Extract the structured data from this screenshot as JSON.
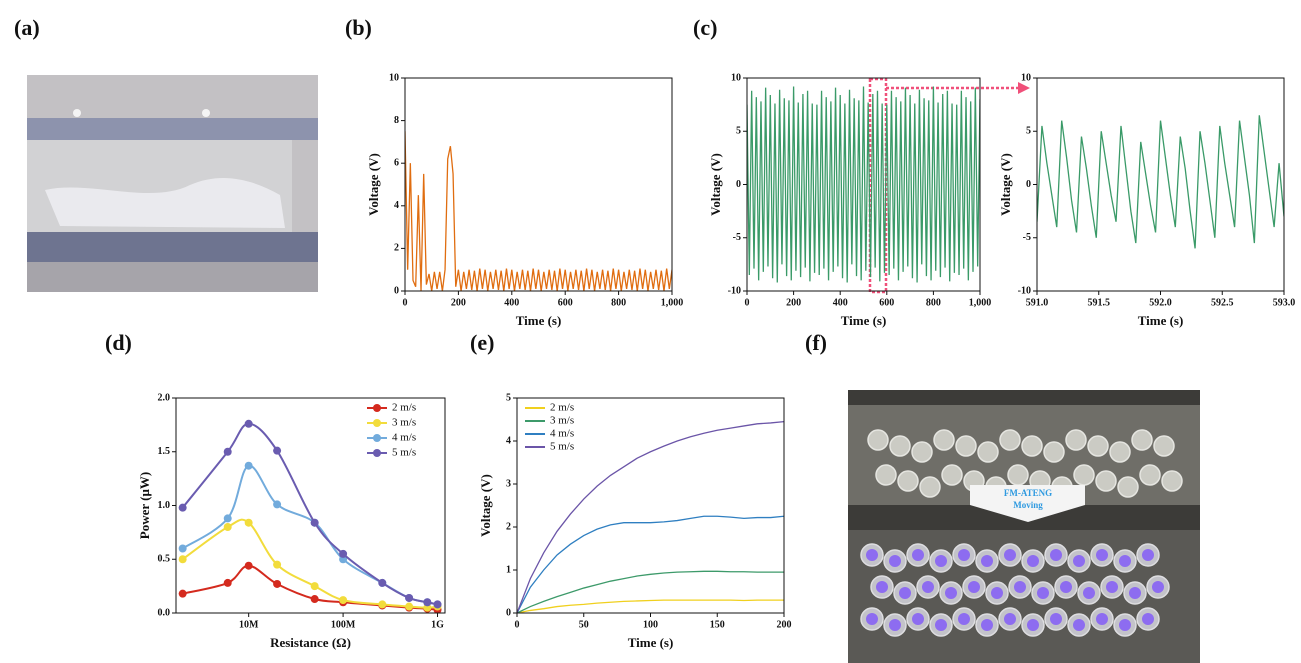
{
  "figures": {
    "a": {
      "label": "(a)"
    },
    "f": {
      "label": "(f)",
      "annotation": [
        "FM-ATENG",
        "Moving"
      ]
    }
  },
  "chart_data": [
    {
      "type": "line",
      "label": "(b)",
      "xlabel": "Time (s)",
      "ylabel": "Voltage (V)",
      "color": "#e06d10",
      "xlim": [
        0,
        1000
      ],
      "ylim": [
        0,
        10
      ],
      "xticks": [
        0,
        200,
        400,
        600,
        800,
        {
          "value": 1000,
          "label": "1,000"
        }
      ],
      "yticks": [
        0,
        2,
        4,
        6,
        8,
        10
      ],
      "x": [
        0,
        10,
        20,
        30,
        40,
        50,
        60,
        70,
        80,
        90,
        100,
        110,
        120,
        130,
        140,
        150,
        160,
        170,
        180,
        190,
        200,
        210,
        220,
        230,
        240,
        250,
        260,
        270,
        280,
        290,
        300,
        310,
        320,
        330,
        340,
        350,
        360,
        370,
        380,
        390,
        400,
        410,
        420,
        430,
        440,
        450,
        460,
        470,
        480,
        490,
        500,
        510,
        520,
        530,
        540,
        550,
        560,
        570,
        580,
        590,
        600,
        610,
        620,
        630,
        640,
        650,
        660,
        670,
        680,
        690,
        700,
        710,
        720,
        730,
        740,
        750,
        760,
        770,
        780,
        790,
        800,
        810,
        820,
        830,
        840,
        850,
        860,
        870,
        880,
        890,
        900,
        910,
        920,
        930,
        940,
        950,
        960,
        970,
        980,
        990,
        1000
      ],
      "values": [
        7.5,
        1,
        6,
        0.5,
        0.2,
        4.5,
        0,
        5.5,
        0.3,
        0.8,
        0,
        0.9,
        0.1,
        0.9,
        0,
        1,
        6.2,
        6.8,
        5.5,
        0.2,
        1,
        0,
        0.9,
        0.1,
        1,
        0.05,
        0.95,
        0,
        1.05,
        0.1,
        1,
        0,
        0.9,
        0.1,
        1,
        0.05,
        0.95,
        0,
        1.05,
        0.1,
        1,
        0,
        0.9,
        0.1,
        1,
        0.05,
        0.95,
        0,
        1.05,
        0.1,
        1,
        0,
        0.9,
        0.1,
        1,
        0.05,
        0.95,
        0,
        1.05,
        0.1,
        1,
        0,
        0.9,
        0.1,
        1,
        0.05,
        0.95,
        0,
        1.05,
        0.1,
        1,
        0,
        0.9,
        0.1,
        1,
        0.05,
        0.95,
        0,
        1.05,
        0.1,
        1,
        0,
        0.9,
        0.1,
        1,
        0.05,
        0.95,
        0,
        1.05,
        0.1,
        1,
        0,
        0.9,
        0.1,
        1,
        0.05,
        0.95,
        0,
        1.05,
        0.1,
        1
      ]
    },
    {
      "type": "line",
      "label": "(c)",
      "xlabel": "Time (s)",
      "ylabel": "Voltage (V)",
      "color": "#3a9a68",
      "xlim": [
        0,
        1000
      ],
      "ylim": [
        -10,
        10
      ],
      "xticks": [
        0,
        200,
        400,
        600,
        800,
        {
          "value": 1000,
          "label": "1,000"
        }
      ],
      "yticks": [
        -10,
        -5,
        0,
        5,
        10
      ],
      "x": [
        0,
        10,
        20,
        30,
        40,
        50,
        60,
        70,
        80,
        90,
        100,
        110,
        120,
        130,
        140,
        150,
        160,
        170,
        180,
        190,
        200,
        210,
        220,
        230,
        240,
        250,
        260,
        270,
        280,
        290,
        300,
        310,
        320,
        330,
        340,
        350,
        360,
        370,
        380,
        390,
        400,
        410,
        420,
        430,
        440,
        450,
        460,
        470,
        480,
        490,
        500,
        510,
        520,
        530,
        540,
        550,
        560,
        570,
        580,
        590,
        600,
        610,
        620,
        630,
        640,
        650,
        660,
        670,
        680,
        690,
        700,
        710,
        720,
        730,
        740,
        750,
        760,
        770,
        780,
        790,
        800,
        810,
        820,
        830,
        840,
        850,
        860,
        870,
        880,
        890,
        900,
        910,
        920,
        930,
        940,
        950,
        960,
        970,
        980,
        990,
        1000
      ],
      "values": [
        7.5,
        -8.5,
        8.8,
        -7.9,
        8.2,
        -9,
        7.8,
        -8.2,
        9.1,
        -7.7,
        8.4,
        -8.8,
        7.6,
        -9.2,
        8.9,
        -7.5,
        8.1,
        -8.6,
        7.9,
        -9,
        9.2,
        -8.1,
        7.7,
        -8.7,
        8.5,
        -7.8,
        8.8,
        -9.1,
        7.6,
        -8.3,
        7.5,
        -8.5,
        8.8,
        -7.9,
        8.2,
        -9,
        7.8,
        -8.2,
        9.1,
        -7.7,
        8.4,
        -8.8,
        7.6,
        -9.2,
        8.9,
        -7.5,
        8.1,
        -8.6,
        7.9,
        -9,
        9.2,
        -8.1,
        7.7,
        -8.7,
        8.5,
        -7.8,
        8.8,
        -9.1,
        7.6,
        -8.3,
        7.5,
        -8.5,
        8.8,
        -7.9,
        8.2,
        -9,
        7.8,
        -8.2,
        9.1,
        -7.7,
        8.4,
        -8.8,
        7.6,
        -9.2,
        8.9,
        -7.5,
        8.1,
        -8.6,
        7.9,
        -9,
        9.2,
        -8.1,
        7.7,
        -8.7,
        8.5,
        -7.8,
        8.8,
        -9.1,
        7.6,
        -8.3,
        7.5,
        -8.5,
        8.8,
        -7.9,
        8.2,
        -9,
        7.8,
        -8.2,
        9.1,
        -7.7,
        8
      ]
    },
    {
      "type": "line",
      "xlabel": "Time (s)",
      "ylabel": "Voltage (V)",
      "color": "#3a9a68",
      "xlim": [
        591,
        593
      ],
      "ylim": [
        -10,
        10
      ],
      "xticks": [
        {
          "value": 591,
          "label": "591.0"
        },
        591.5,
        {
          "value": 592,
          "label": "592.0"
        },
        592.5,
        {
          "value": 593,
          "label": "593.0"
        }
      ],
      "yticks": [
        -10,
        -5,
        0,
        5,
        10
      ],
      "x": [
        591,
        591.04,
        591.08,
        591.12,
        591.16,
        591.2,
        591.24,
        591.28,
        591.32,
        591.36,
        591.4,
        591.44,
        591.48,
        591.52,
        591.56,
        591.6,
        591.64,
        591.68,
        591.72,
        591.76,
        591.8,
        591.84,
        591.88,
        591.92,
        591.96,
        592,
        592.04,
        592.08,
        592.12,
        592.16,
        592.2,
        592.24,
        592.28,
        592.32,
        592.36,
        592.4,
        592.44,
        592.48,
        592.52,
        592.56,
        592.6,
        592.64,
        592.68,
        592.72,
        592.76,
        592.8,
        592.84,
        592.88,
        592.92,
        592.96,
        593
      ],
      "values": [
        -3.5,
        5.5,
        2,
        -1,
        -4,
        6,
        2.5,
        -1.5,
        -4.5,
        4.5,
        1.5,
        -2,
        -5,
        5,
        2,
        -1,
        -3.5,
        5.5,
        1.5,
        -2.5,
        -5.5,
        4,
        1,
        -2,
        -4.5,
        6,
        2.5,
        -1,
        -4,
        4.5,
        1.5,
        -2.5,
        -6,
        5,
        2,
        -1.5,
        -5,
        5.5,
        2,
        -1,
        -4,
        6,
        2.5,
        -1,
        -5.5,
        6.5,
        3,
        -0.5,
        -4,
        2,
        -3
      ]
    },
    {
      "type": "line",
      "label": "(d)",
      "xlabel": "Resistance (Ω)",
      "ylabel": "Power (μW)",
      "xscale": "log",
      "markers": true,
      "smooth": true,
      "legend": "upper right",
      "xlim": [
        1700000,
        1200000000
      ],
      "ylim": [
        0,
        2
      ],
      "xticks": [
        {
          "value": 10000000,
          "label": "10M"
        },
        {
          "value": 100000000,
          "label": "100M"
        },
        {
          "value": 1000000000,
          "label": "1G"
        }
      ],
      "yticks": [
        {
          "value": 0,
          "label": "0.0"
        },
        0.5,
        {
          "value": 1,
          "label": "1.0"
        },
        1.5,
        {
          "value": 2,
          "label": "2.0"
        }
      ],
      "x": [
        2000000,
        6000000,
        10000000,
        20000000,
        50000000,
        100000000,
        260000000,
        500000000,
        780000000,
        1000000000
      ],
      "series": [
        {
          "name": "2 m/s",
          "color": "#d42a1e",
          "values": [
            0.18,
            0.28,
            0.44,
            0.27,
            0.13,
            0.1,
            0.07,
            0.05,
            0.04,
            0.03
          ]
        },
        {
          "name": "3 m/s",
          "color": "#f2dc3c",
          "values": [
            0.5,
            0.8,
            0.84,
            0.45,
            0.25,
            0.12,
            0.08,
            0.06,
            0.05,
            0.06
          ]
        },
        {
          "name": "4 m/s",
          "color": "#72abdc",
          "values": [
            0.6,
            0.88,
            1.37,
            1.01,
            0.84,
            0.5,
            0.28,
            0.14,
            0.1,
            0.08
          ]
        },
        {
          "name": "5 m/s",
          "color": "#6a5cb0",
          "values": [
            0.98,
            1.5,
            1.76,
            1.51,
            0.84,
            0.55,
            0.28,
            0.14,
            0.1,
            0.08
          ]
        }
      ]
    },
    {
      "type": "line",
      "label": "(e)",
      "xlabel": "Time (s)",
      "ylabel": "Voltage (V)",
      "legend": "upper left",
      "xlim": [
        0,
        200
      ],
      "ylim": [
        0,
        5
      ],
      "xticks": [
        0,
        50,
        100,
        150,
        200
      ],
      "yticks": [
        0,
        1,
        2,
        3,
        4,
        5
      ],
      "x": [
        0,
        10,
        20,
        30,
        40,
        50,
        60,
        70,
        80,
        90,
        100,
        110,
        120,
        130,
        140,
        150,
        160,
        170,
        180,
        190,
        200
      ],
      "series": [
        {
          "name": "2 m/s",
          "color": "#f0d01e",
          "values": [
            0,
            0.06,
            0.1,
            0.15,
            0.18,
            0.2,
            0.23,
            0.25,
            0.27,
            0.28,
            0.29,
            0.3,
            0.3,
            0.3,
            0.3,
            0.3,
            0.3,
            0.29,
            0.3,
            0.3,
            0.3
          ]
        },
        {
          "name": "3 m/s",
          "color": "#3d9a6a",
          "values": [
            0,
            0.15,
            0.27,
            0.38,
            0.48,
            0.58,
            0.66,
            0.74,
            0.8,
            0.86,
            0.9,
            0.93,
            0.95,
            0.96,
            0.97,
            0.97,
            0.96,
            0.96,
            0.95,
            0.95,
            0.95
          ]
        },
        {
          "name": "4 m/s",
          "color": "#2f7fc1",
          "values": [
            0,
            0.6,
            1,
            1.35,
            1.6,
            1.8,
            1.95,
            2.05,
            2.1,
            2.1,
            2.1,
            2.12,
            2.15,
            2.2,
            2.25,
            2.25,
            2.23,
            2.2,
            2.22,
            2.22,
            2.25
          ]
        },
        {
          "name": "5 m/s",
          "color": "#6b55a8",
          "values": [
            0,
            0.8,
            1.4,
            1.9,
            2.3,
            2.65,
            2.95,
            3.2,
            3.4,
            3.6,
            3.75,
            3.88,
            4,
            4.1,
            4.18,
            4.25,
            4.3,
            4.35,
            4.4,
            4.42,
            4.45
          ]
        }
      ]
    }
  ]
}
